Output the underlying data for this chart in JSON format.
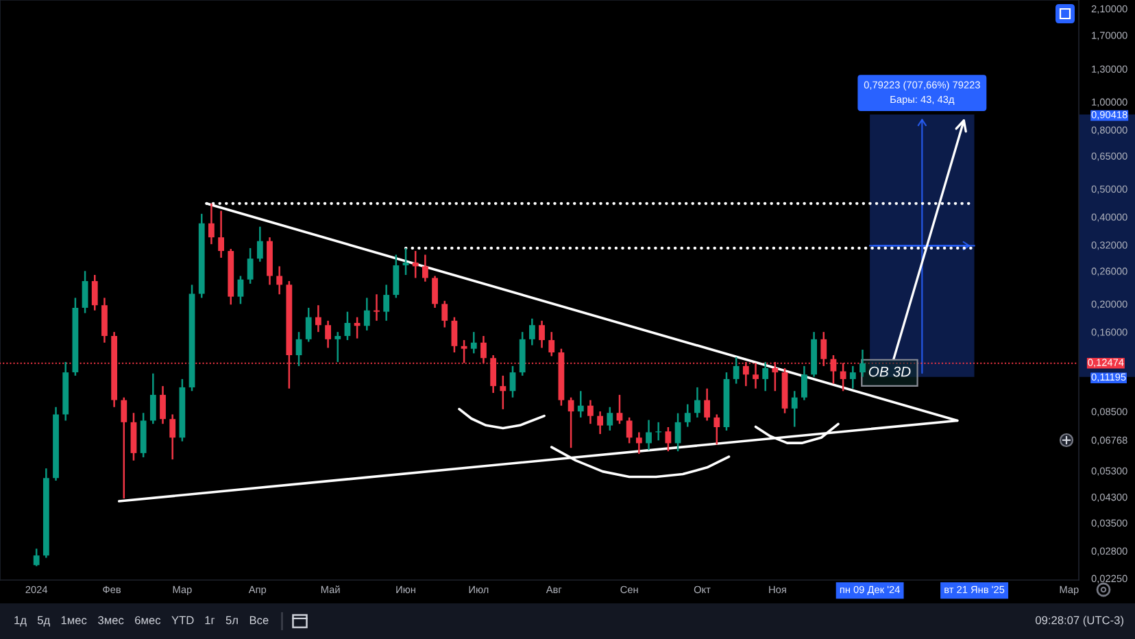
{
  "chart_data": [
    {
      "type": "candlestick",
      "log": "y",
      "xlim": [
        "2023-12-17",
        "2025-03-05"
      ],
      "ylim": [
        0.0222,
        2.25
      ],
      "xticks": [
        {
          "value": "2024-01-01",
          "label": "2024"
        },
        {
          "value": "2024-02-01",
          "label": "Фев"
        },
        {
          "value": "2024-03-01",
          "label": "Мар"
        },
        {
          "value": "2024-04-01",
          "label": "Апр"
        },
        {
          "value": "2024-05-01",
          "label": "Май"
        },
        {
          "value": "2024-06-01",
          "label": "Июн"
        },
        {
          "value": "2024-07-01",
          "label": "Июл"
        },
        {
          "value": "2024-08-01",
          "label": "Авг"
        },
        {
          "value": "2024-09-01",
          "label": "Сен"
        },
        {
          "value": "2024-10-01",
          "label": "Окт"
        },
        {
          "value": "2024-11-01",
          "label": "Ноя"
        },
        {
          "value": "2024-12-09",
          "label": "пн 09 Дек '24"
        },
        {
          "value": "2025-01-21",
          "label": "вт 21 Янв '25"
        },
        {
          "value": "2025-03-01",
          "label": "Мар"
        }
      ],
      "yticks": [
        {
          "value": 2.1,
          "label": "2,10000"
        },
        {
          "value": 1.7,
          "label": "1,70000"
        },
        {
          "value": 1.3,
          "label": "1,30000"
        },
        {
          "value": 1.0,
          "label": "1,00000"
        },
        {
          "value": 0.90418,
          "label": "0,90418"
        },
        {
          "value": 0.8,
          "label": "0,80000"
        },
        {
          "value": 0.65,
          "label": "0,65000"
        },
        {
          "value": 0.5,
          "label": "0,50000"
        },
        {
          "value": 0.4,
          "label": "0,40000"
        },
        {
          "value": 0.32,
          "label": "0,32000"
        },
        {
          "value": 0.26,
          "label": "0,26000"
        },
        {
          "value": 0.2,
          "label": "0,20000"
        },
        {
          "value": 0.16,
          "label": "0,16000"
        },
        {
          "value": 0.11195,
          "label": "0,11195"
        },
        {
          "value": 0.085,
          "label": "0,08500"
        },
        {
          "value": 0.06768,
          "label": "0,06768"
        },
        {
          "value": 0.053,
          "label": "0,05300"
        },
        {
          "value": 0.043,
          "label": "0,04300"
        },
        {
          "value": 0.035,
          "label": "0,03500"
        },
        {
          "value": 0.028,
          "label": "0,02800"
        },
        {
          "value": 0.0225,
          "label": "0,02250"
        }
      ],
      "series": [
        {
          "type": "candlestick",
          "x": [
            "2024-01-01",
            "2024-01-05",
            "2024-01-09",
            "2024-01-13",
            "2024-01-17",
            "2024-01-21",
            "2024-01-25",
            "2024-01-29",
            "2024-02-02",
            "2024-02-06",
            "2024-02-10",
            "2024-02-14",
            "2024-02-18",
            "2024-02-22",
            "2024-02-26",
            "2024-03-01",
            "2024-03-05",
            "2024-03-09",
            "2024-03-13",
            "2024-03-17",
            "2024-03-21",
            "2024-03-25",
            "2024-03-29",
            "2024-04-02",
            "2024-04-06",
            "2024-04-10",
            "2024-04-14",
            "2024-04-18",
            "2024-04-22",
            "2024-04-26",
            "2024-04-30",
            "2024-05-04",
            "2024-05-08",
            "2024-05-12",
            "2024-05-16",
            "2024-05-20",
            "2024-05-24",
            "2024-05-28",
            "2024-06-01",
            "2024-06-05",
            "2024-06-09",
            "2024-06-13",
            "2024-06-17",
            "2024-06-21",
            "2024-06-25",
            "2024-06-29",
            "2024-07-03",
            "2024-07-07",
            "2024-07-11",
            "2024-07-15",
            "2024-07-19",
            "2024-07-23",
            "2024-07-27",
            "2024-07-31",
            "2024-08-04",
            "2024-08-08",
            "2024-08-12",
            "2024-08-16",
            "2024-08-20",
            "2024-08-24",
            "2024-08-28",
            "2024-09-01",
            "2024-09-05",
            "2024-09-09",
            "2024-09-13",
            "2024-09-17",
            "2024-09-21",
            "2024-09-25",
            "2024-09-29",
            "2024-10-03",
            "2024-10-07",
            "2024-10-11",
            "2024-10-15",
            "2024-10-19",
            "2024-10-23",
            "2024-10-27",
            "2024-10-31",
            "2024-11-04",
            "2024-11-08",
            "2024-11-12",
            "2024-11-16",
            "2024-11-20",
            "2024-11-24",
            "2024-11-28",
            "2024-12-02",
            "2024-12-06"
          ],
          "ohlc": [
            [
              0.025,
              0.0285,
              0.0248,
              0.027
            ],
            [
              0.027,
              0.054,
              0.0265,
              0.05
            ],
            [
              0.05,
              0.088,
              0.049,
              0.083
            ],
            [
              0.083,
              0.126,
              0.079,
              0.116
            ],
            [
              0.116,
              0.21,
              0.113,
              0.194
            ],
            [
              0.194,
              0.26,
              0.186,
              0.24
            ],
            [
              0.24,
              0.252,
              0.19,
              0.198
            ],
            [
              0.198,
              0.21,
              0.147,
              0.155
            ],
            [
              0.155,
              0.16,
              0.088,
              0.093
            ],
            [
              0.093,
              0.095,
              0.0425,
              0.078
            ],
            [
              0.078,
              0.084,
              0.0575,
              0.061
            ],
            [
              0.061,
              0.084,
              0.059,
              0.079
            ],
            [
              0.079,
              0.115,
              0.077,
              0.097
            ],
            [
              0.097,
              0.104,
              0.077,
              0.08
            ],
            [
              0.08,
              0.083,
              0.058,
              0.069
            ],
            [
              0.069,
              0.11,
              0.067,
              0.103
            ],
            [
              0.103,
              0.233,
              0.1,
              0.217
            ],
            [
              0.217,
              0.41,
              0.21,
              0.38
            ],
            [
              0.38,
              0.445,
              0.322,
              0.34
            ],
            [
              0.34,
              0.42,
              0.289,
              0.305
            ],
            [
              0.305,
              0.31,
              0.199,
              0.212
            ],
            [
              0.212,
              0.25,
              0.2,
              0.243
            ],
            [
              0.243,
              0.312,
              0.235,
              0.287
            ],
            [
              0.287,
              0.37,
              0.28,
              0.33
            ],
            [
              0.33,
              0.34,
              0.233,
              0.25
            ],
            [
              0.25,
              0.27,
              0.216,
              0.233
            ],
            [
              0.233,
              0.24,
              0.102,
              0.133
            ],
            [
              0.133,
              0.16,
              0.122,
              0.151
            ],
            [
              0.151,
              0.194,
              0.148,
              0.18
            ],
            [
              0.18,
              0.198,
              0.16,
              0.169
            ],
            [
              0.169,
              0.175,
              0.141,
              0.151
            ],
            [
              0.151,
              0.16,
              0.126,
              0.155
            ],
            [
              0.155,
              0.188,
              0.15,
              0.172
            ],
            [
              0.172,
              0.18,
              0.152,
              0.168
            ],
            [
              0.168,
              0.21,
              0.162,
              0.19
            ],
            [
              0.19,
              0.216,
              0.175,
              0.188
            ],
            [
              0.188,
              0.233,
              0.175,
              0.215
            ],
            [
              0.215,
              0.296,
              0.21,
              0.272
            ],
            [
              0.272,
              0.312,
              0.252,
              0.278
            ],
            [
              0.278,
              0.305,
              0.246,
              0.27
            ],
            [
              0.27,
              0.296,
              0.239,
              0.246
            ],
            [
              0.246,
              0.25,
              0.194,
              0.2
            ],
            [
              0.2,
              0.205,
              0.166,
              0.175
            ],
            [
              0.175,
              0.18,
              0.136,
              0.143
            ],
            [
              0.143,
              0.15,
              0.125,
              0.14
            ],
            [
              0.14,
              0.16,
              0.135,
              0.147
            ],
            [
              0.147,
              0.155,
              0.125,
              0.13
            ],
            [
              0.13,
              0.133,
              0.0985,
              0.104
            ],
            [
              0.104,
              0.113,
              0.0865,
              0.1
            ],
            [
              0.1,
              0.122,
              0.095,
              0.116
            ],
            [
              0.116,
              0.16,
              0.113,
              0.151
            ],
            [
              0.151,
              0.178,
              0.144,
              0.169
            ],
            [
              0.169,
              0.175,
              0.141,
              0.15
            ],
            [
              0.15,
              0.16,
              0.132,
              0.136
            ],
            [
              0.136,
              0.14,
              0.089,
              0.093
            ],
            [
              0.093,
              0.095,
              0.0636,
              0.085
            ],
            [
              0.085,
              0.1,
              0.081,
              0.089
            ],
            [
              0.089,
              0.093,
              0.077,
              0.082
            ],
            [
              0.082,
              0.085,
              0.071,
              0.076
            ],
            [
              0.076,
              0.088,
              0.073,
              0.084
            ],
            [
              0.084,
              0.097,
              0.077,
              0.079
            ],
            [
              0.079,
              0.081,
              0.066,
              0.069
            ],
            [
              0.069,
              0.072,
              0.0606,
              0.066
            ],
            [
              0.066,
              0.0794,
              0.0625,
              0.072
            ],
            [
              0.072,
              0.078,
              0.0675,
              0.0725
            ],
            [
              0.0725,
              0.075,
              0.0619,
              0.066
            ],
            [
              0.066,
              0.0838,
              0.0619,
              0.078
            ],
            [
              0.078,
              0.09,
              0.0752,
              0.084
            ],
            [
              0.084,
              0.103,
              0.081,
              0.093
            ],
            [
              0.093,
              0.102,
              0.079,
              0.081
            ],
            [
              0.081,
              0.083,
              0.0653,
              0.075
            ],
            [
              0.075,
              0.116,
              0.073,
              0.11
            ],
            [
              0.11,
              0.131,
              0.106,
              0.122
            ],
            [
              0.122,
              0.126,
              0.104,
              0.114
            ],
            [
              0.114,
              0.125,
              0.102,
              0.11
            ],
            [
              0.11,
              0.126,
              0.1,
              0.12
            ],
            [
              0.12,
              0.126,
              0.1,
              0.116
            ],
            [
              0.116,
              0.12,
              0.0838,
              0.087
            ],
            [
              0.087,
              0.1,
              0.0752,
              0.095
            ],
            [
              0.095,
              0.122,
              0.093,
              0.114
            ],
            [
              0.114,
              0.16,
              0.112,
              0.151
            ],
            [
              0.151,
              0.16,
              0.122,
              0.129
            ],
            [
              0.129,
              0.133,
              0.106,
              0.117
            ],
            [
              0.117,
              0.125,
              0.1,
              0.11
            ],
            [
              0.11,
              0.122,
              0.102,
              0.116
            ],
            [
              0.116,
              0.139,
              0.112,
              0.1247
            ]
          ],
          "colors": [
            "#089981",
            "#089981",
            "#089981",
            "#089981",
            "#089981",
            "#089981",
            "#f23645",
            "#f23645",
            "#f23645",
            "#f23645",
            "#f23645",
            "#089981",
            "#089981",
            "#f23645",
            "#f23645",
            "#089981",
            "#089981",
            "#089981",
            "#f23645",
            "#f23645",
            "#f23645",
            "#089981",
            "#089981",
            "#089981",
            "#f23645",
            "#f23645",
            "#f23645",
            "#089981",
            "#089981",
            "#f23645",
            "#f23645",
            "#089981",
            "#089981",
            "#f23645",
            "#089981",
            "#f23645",
            "#089981",
            "#089981",
            "#089981",
            "#f23645",
            "#f23645",
            "#f23645",
            "#f23645",
            "#f23645",
            "#f23645",
            "#089981",
            "#f23645",
            "#f23645",
            "#f23645",
            "#089981",
            "#089981",
            "#089981",
            "#f23645",
            "#f23645",
            "#f23645",
            "#f23645",
            "#089981",
            "#f23645",
            "#f23645",
            "#089981",
            "#f23645",
            "#f23645",
            "#f23645",
            "#089981",
            "#089981",
            "#f23645",
            "#089981",
            "#089981",
            "#089981",
            "#f23645",
            "#f23645",
            "#089981",
            "#089981",
            "#f23645",
            "#f23645",
            "#089981",
            "#f23645",
            "#f23645",
            "#089981",
            "#089981",
            "#089981",
            "#f23645",
            "#f23645",
            "#f23645",
            "#089981",
            "#089981"
          ]
        },
        {
          "type": "line",
          "x": [
            "2024-03-11",
            "2025-01-14"
          ],
          "values": [
            0.445,
            0.079
          ],
          "color": "#ffffff"
        },
        {
          "type": "line",
          "x": [
            "2024-02-04",
            "2025-01-14"
          ],
          "values": [
            0.0416,
            0.079
          ],
          "color": "#ffffff"
        },
        {
          "type": "line",
          "x": [
            "2024-03-11",
            "2025-01-21"
          ],
          "values": [
            0.445,
            0.445
          ],
          "color": "#ffffff",
          "line_style": "dotted"
        },
        {
          "type": "line",
          "x": [
            "2024-06-01",
            "2025-01-21"
          ],
          "values": [
            0.312,
            0.312
          ],
          "color": "#ffffff",
          "line_style": "dotted"
        },
        {
          "type": "line",
          "x": [
            "2024-06-23",
            "2024-06-28",
            "2024-07-04",
            "2024-07-11",
            "2024-07-18",
            "2024-07-28"
          ],
          "values": [
            0.0866,
            0.0803,
            0.0761,
            0.0744,
            0.0761,
            0.082
          ],
          "color": "#ffffff"
        },
        {
          "type": "line",
          "x": [
            "2024-07-31",
            "2024-08-10",
            "2024-08-21",
            "2024-09-01",
            "2024-09-12",
            "2024-09-23",
            "2024-10-03",
            "2024-10-12"
          ],
          "values": [
            0.064,
            0.0575,
            0.0527,
            0.0505,
            0.0505,
            0.0516,
            0.0544,
            0.0593
          ],
          "color": "#ffffff"
        },
        {
          "type": "line",
          "x": [
            "2024-10-23",
            "2024-10-29",
            "2024-11-05",
            "2024-11-11",
            "2024-11-19",
            "2024-11-26"
          ],
          "values": [
            0.0752,
            0.0698,
            0.0661,
            0.0661,
            0.069,
            0.0769
          ],
          "color": "#ffffff"
        },
        {
          "type": "line",
          "x": [
            "2024-12-09",
            "2025-01-21"
          ],
          "values": [
            0.318,
            0.318
          ],
          "lower": [
            0.11195,
            0.11195
          ],
          "upper": [
            0.90418,
            0.90418
          ],
          "color": "#2962ff"
        }
      ],
      "ref_lines": [
        {
          "axis": "y",
          "value": 0.12474,
          "label": "0,12474",
          "color": "#f23645",
          "line_style": "dotted"
        }
      ],
      "annotations": [
        {
          "text": "OB 3D",
          "x": "2025-01-17",
          "y": 0.879
        },
        {
          "text": "0,79223 (707,66%) 79223\nБары: 43, 43д",
          "x": "2024-12-30T12:00",
          "y": 0.90418
        }
      ]
    },
    {
      "type": "other",
      "annotations": [
        "1д",
        "5д",
        "1мес",
        "3мес",
        "6мес",
        "YTD",
        "1г",
        "5л",
        "Все",
        "09:28:07 (UTC-3)"
      ]
    }
  ]
}
